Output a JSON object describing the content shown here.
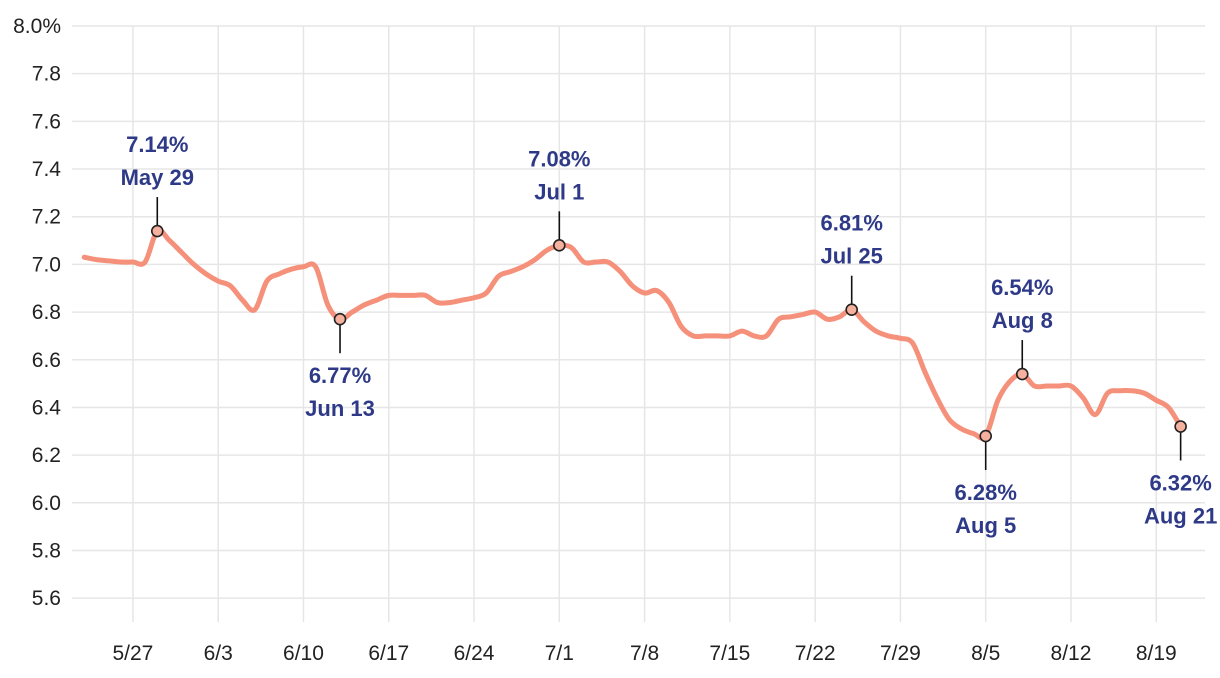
{
  "chart_data": {
    "type": "line",
    "grid": true,
    "y_unit_suffix": "%",
    "ylim": [
      5.5,
      8.0
    ],
    "y_ticks": [
      5.6,
      5.8,
      6.0,
      6.2,
      6.4,
      6.6,
      6.8,
      7.0,
      7.2,
      7.4,
      7.6,
      7.8,
      8.0
    ],
    "y_tick_labels": [
      "5.6",
      "5.8",
      "6.0",
      "6.2",
      "6.4",
      "6.6",
      "6.8",
      "7.0",
      "7.2",
      "7.4",
      "7.6",
      "7.8",
      "8.0%"
    ],
    "xlim": [
      "2024-05-22",
      "2024-08-23"
    ],
    "x_ticks": [
      "2024-05-27",
      "2024-06-03",
      "2024-06-10",
      "2024-06-17",
      "2024-06-24",
      "2024-07-01",
      "2024-07-08",
      "2024-07-15",
      "2024-07-22",
      "2024-07-29",
      "2024-08-05",
      "2024-08-12",
      "2024-08-19"
    ],
    "x_tick_labels": [
      "5/27",
      "6/3",
      "6/10",
      "6/17",
      "6/24",
      "7/1",
      "7/8",
      "7/15",
      "7/22",
      "7/29",
      "8/5",
      "8/12",
      "8/19"
    ],
    "series": [
      {
        "color": "#f5907a",
        "points": [
          [
            "2024-05-23",
            7.03
          ],
          [
            "2024-05-24",
            7.02
          ],
          [
            "2024-05-25",
            7.015
          ],
          [
            "2024-05-26",
            7.01
          ],
          [
            "2024-05-27",
            7.01
          ],
          [
            "2024-05-28",
            7.01
          ],
          [
            "2024-05-29",
            7.14
          ],
          [
            "2024-05-30",
            7.1
          ],
          [
            "2024-05-31",
            7.05
          ],
          [
            "2024-06-01",
            7.0
          ],
          [
            "2024-06-02",
            6.96
          ],
          [
            "2024-06-03",
            6.93
          ],
          [
            "2024-06-04",
            6.91
          ],
          [
            "2024-06-05",
            6.85
          ],
          [
            "2024-06-06",
            6.81
          ],
          [
            "2024-06-07",
            6.93
          ],
          [
            "2024-06-08",
            6.96
          ],
          [
            "2024-06-09",
            6.98
          ],
          [
            "2024-06-10",
            6.99
          ],
          [
            "2024-06-11",
            6.99
          ],
          [
            "2024-06-12",
            6.83
          ],
          [
            "2024-06-13",
            6.77
          ],
          [
            "2024-06-14",
            6.8
          ],
          [
            "2024-06-15",
            6.83
          ],
          [
            "2024-06-16",
            6.85
          ],
          [
            "2024-06-17",
            6.87
          ],
          [
            "2024-06-18",
            6.87
          ],
          [
            "2024-06-19",
            6.87
          ],
          [
            "2024-06-20",
            6.87
          ],
          [
            "2024-06-21",
            6.84
          ],
          [
            "2024-06-22",
            6.84
          ],
          [
            "2024-06-23",
            6.85
          ],
          [
            "2024-06-24",
            6.86
          ],
          [
            "2024-06-25",
            6.88
          ],
          [
            "2024-06-26",
            6.95
          ],
          [
            "2024-06-27",
            6.97
          ],
          [
            "2024-06-28",
            6.99
          ],
          [
            "2024-06-29",
            7.02
          ],
          [
            "2024-06-30",
            7.06
          ],
          [
            "2024-07-01",
            7.08
          ],
          [
            "2024-07-02",
            7.07
          ],
          [
            "2024-07-03",
            7.01
          ],
          [
            "2024-07-04",
            7.01
          ],
          [
            "2024-07-05",
            7.01
          ],
          [
            "2024-07-06",
            6.97
          ],
          [
            "2024-07-07",
            6.91
          ],
          [
            "2024-07-08",
            6.88
          ],
          [
            "2024-07-09",
            6.89
          ],
          [
            "2024-07-10",
            6.84
          ],
          [
            "2024-07-11",
            6.74
          ],
          [
            "2024-07-12",
            6.7
          ],
          [
            "2024-07-13",
            6.7
          ],
          [
            "2024-07-14",
            6.7
          ],
          [
            "2024-07-15",
            6.7
          ],
          [
            "2024-07-16",
            6.72
          ],
          [
            "2024-07-17",
            6.7
          ],
          [
            "2024-07-18",
            6.7
          ],
          [
            "2024-07-19",
            6.77
          ],
          [
            "2024-07-20",
            6.78
          ],
          [
            "2024-07-21",
            6.79
          ],
          [
            "2024-07-22",
            6.8
          ],
          [
            "2024-07-23",
            6.77
          ],
          [
            "2024-07-24",
            6.78
          ],
          [
            "2024-07-25",
            6.81
          ],
          [
            "2024-07-26",
            6.76
          ],
          [
            "2024-07-27",
            6.72
          ],
          [
            "2024-07-28",
            6.7
          ],
          [
            "2024-07-29",
            6.69
          ],
          [
            "2024-07-30",
            6.67
          ],
          [
            "2024-07-31",
            6.55
          ],
          [
            "2024-08-01",
            6.44
          ],
          [
            "2024-08-02",
            6.35
          ],
          [
            "2024-08-03",
            6.31
          ],
          [
            "2024-08-04",
            6.29
          ],
          [
            "2024-08-05",
            6.28
          ],
          [
            "2024-08-06",
            6.43
          ],
          [
            "2024-08-07",
            6.51
          ],
          [
            "2024-08-08",
            6.54
          ],
          [
            "2024-08-09",
            6.49
          ],
          [
            "2024-08-10",
            6.49
          ],
          [
            "2024-08-11",
            6.49
          ],
          [
            "2024-08-12",
            6.49
          ],
          [
            "2024-08-13",
            6.44
          ],
          [
            "2024-08-14",
            6.37
          ],
          [
            "2024-08-15",
            6.46
          ],
          [
            "2024-08-16",
            6.47
          ],
          [
            "2024-08-17",
            6.47
          ],
          [
            "2024-08-18",
            6.46
          ],
          [
            "2024-08-19",
            6.43
          ],
          [
            "2024-08-20",
            6.4
          ],
          [
            "2024-08-21",
            6.32
          ]
        ]
      }
    ],
    "annotations": [
      {
        "date": "2024-05-29",
        "value": 7.14,
        "line1": "7.14%",
        "line2": "May 29",
        "position": "above"
      },
      {
        "date": "2024-06-13",
        "value": 6.77,
        "line1": "6.77%",
        "line2": "Jun 13",
        "position": "below"
      },
      {
        "date": "2024-07-01",
        "value": 7.08,
        "line1": "7.08%",
        "line2": "Jul 1",
        "position": "above"
      },
      {
        "date": "2024-07-25",
        "value": 6.81,
        "line1": "6.81%",
        "line2": "Jul 25",
        "position": "above"
      },
      {
        "date": "2024-08-05",
        "value": 6.28,
        "line1": "6.28%",
        "line2": "Aug 5",
        "position": "below"
      },
      {
        "date": "2024-08-08",
        "value": 6.54,
        "line1": "6.54%",
        "line2": "Aug 8",
        "position": "above"
      },
      {
        "date": "2024-08-21",
        "value": 6.32,
        "line1": "6.32%",
        "line2": "Aug 21",
        "position": "below"
      }
    ],
    "colors": {
      "line": "#f5907a",
      "annotation_text": "#2e3a87",
      "marker_fill": "#f5b09e",
      "marker_stroke": "#222222",
      "grid": "#e6e6e6"
    }
  }
}
